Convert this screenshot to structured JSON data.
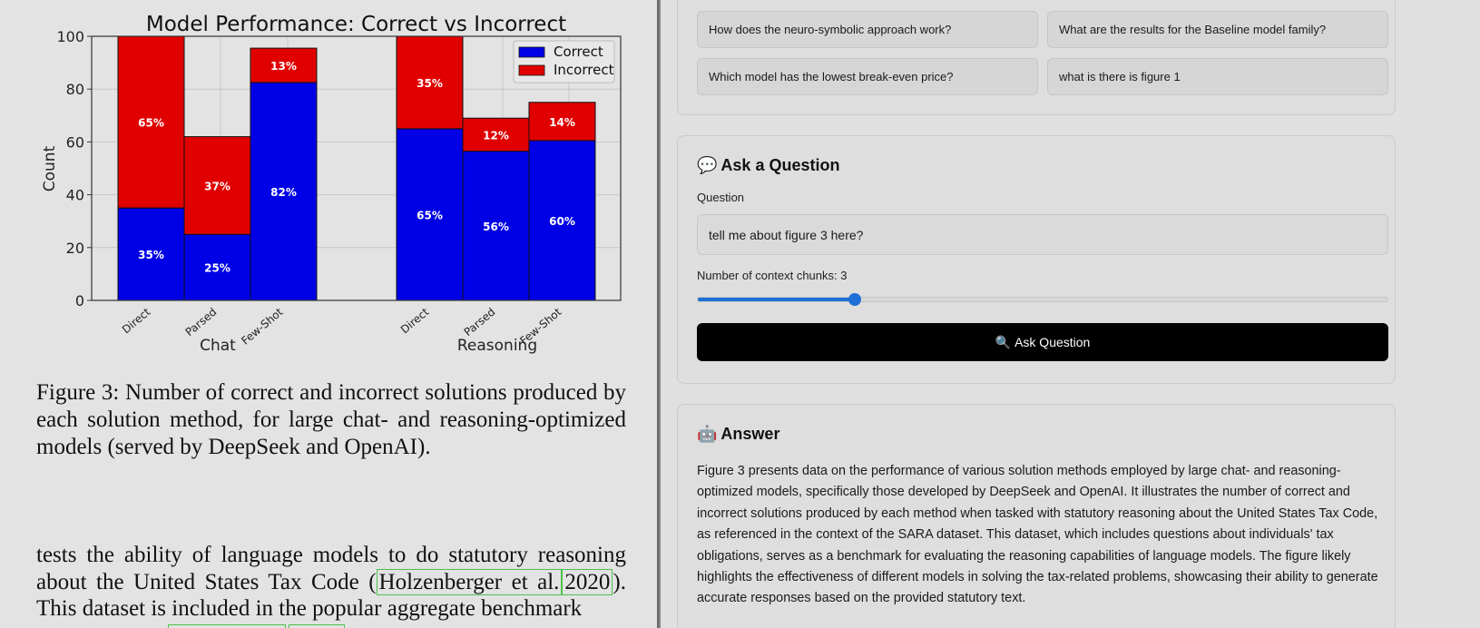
{
  "chart_data": {
    "type": "bar",
    "stacked": true,
    "title": "Model Performance: Correct vs Incorrect",
    "ylabel": "Count",
    "ylim": [
      0,
      100
    ],
    "yticks": [
      0,
      20,
      40,
      60,
      80,
      100
    ],
    "grid": true,
    "legend_position": "top-right",
    "groups": [
      {
        "label": "Chat",
        "categories": [
          "Direct",
          "Parsed",
          "Few-Shot"
        ],
        "correct": [
          35,
          25,
          82.5
        ],
        "incorrect": [
          65,
          37,
          13
        ],
        "correct_labels": [
          "35%",
          "25%",
          "82%"
        ],
        "incorrect_labels": [
          "65%",
          "37%",
          "13%"
        ]
      },
      {
        "label": "Reasoning",
        "categories": [
          "Direct",
          "Parsed",
          "Few-Shot"
        ],
        "correct": [
          65,
          56.5,
          60.5
        ],
        "incorrect": [
          35,
          12.5,
          14.5
        ],
        "correct_labels": [
          "65%",
          "56%",
          "60%"
        ],
        "incorrect_labels": [
          "35%",
          "12%",
          "14%"
        ]
      }
    ],
    "series": [
      {
        "name": "Correct",
        "color": "#0000e6"
      },
      {
        "name": "Incorrect",
        "color": "#e00000"
      }
    ]
  },
  "document": {
    "caption": "Figure 3: Number of correct and incorrect solutions produced by each solution method, for large chat- and reasoning-optimized models (served by DeepSeek and OpenAI).",
    "body_before": "tests the ability of language models to do statutory reasoning about the United States Tax Code (",
    "cite_author": "Holzenberger et al.",
    "cite_year": "2020",
    "body_after": "). This dataset is included in the popular aggregate benchmark"
  },
  "examples": {
    "items": [
      "How does the neuro-symbolic approach work?",
      "What are the results for the Baseline model family?",
      "Which model has the lowest break-even price?",
      "what is there is figure 1"
    ]
  },
  "ask": {
    "title": "Ask a Question",
    "icon": "speech-bubble-icon",
    "question_label": "Question",
    "question_value": "tell me about figure 3 here?",
    "chunks_label": "Number of context chunks: 3",
    "chunks_fraction": 0.228,
    "button_label": "Ask Question",
    "button_icon": "magnifier-icon"
  },
  "answer": {
    "title": "Answer",
    "icon": "robot-icon",
    "text": "Figure 3 presents data on the performance of various solution methods employed by large chat- and reasoning-optimized models, specifically those developed by DeepSeek and OpenAI. It illustrates the number of correct and incorrect solutions produced by each method when tasked with statutory reasoning about the United States Tax Code, as referenced in the context of the SARA dataset. This dataset, which includes questions about individuals' tax obligations, serves as a benchmark for evaluating the reasoning capabilities of language models. The figure likely highlights the effectiveness of different models in solving the tax-related problems, showcasing their ability to generate accurate responses based on the provided statutory text."
  }
}
